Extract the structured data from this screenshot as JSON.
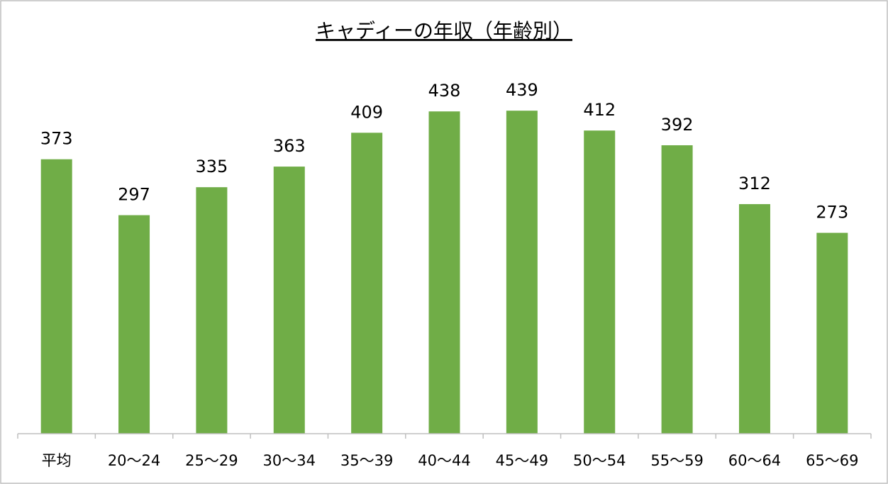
{
  "chart_data": {
    "type": "bar",
    "title": "キャディーの年収（年齢別）",
    "categories": [
      "平均",
      "20〜24",
      "25〜29",
      "30〜34",
      "35〜39",
      "40〜44",
      "45〜49",
      "50〜54",
      "55〜59",
      "60〜64",
      "65〜69"
    ],
    "values": [
      373,
      297,
      335,
      363,
      409,
      438,
      439,
      412,
      392,
      312,
      273
    ],
    "color": "#70ad47",
    "ylim": [
      0,
      470
    ]
  }
}
